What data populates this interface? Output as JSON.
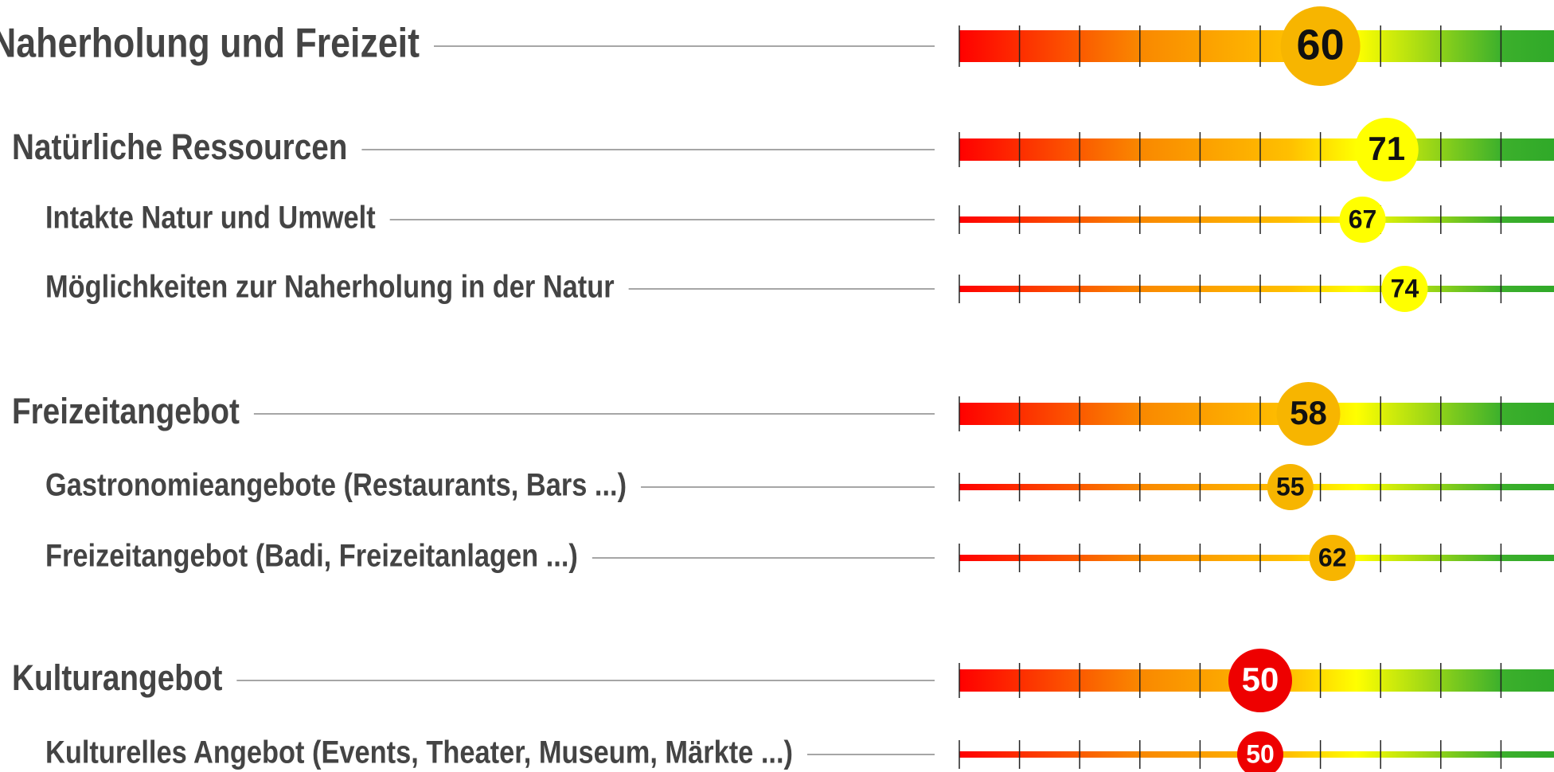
{
  "chart_data": {
    "type": "gauge-list",
    "xlim": [
      0,
      100
    ],
    "xticks": [
      0,
      10,
      20,
      30,
      40,
      50,
      60,
      70,
      80,
      90
    ],
    "rows": [
      {
        "level": 1,
        "label": "Naherholung und Freizeit",
        "value": 60,
        "color": "#f7b500"
      },
      {
        "level": 2,
        "label": "Natürliche Ressourcen",
        "value": 71,
        "color": "#ffff00"
      },
      {
        "level": 3,
        "label": "Intakte Natur und Umwelt",
        "value": 67,
        "color": "#ffff00"
      },
      {
        "level": 3,
        "label": "Möglichkeiten zur Naherholung in der Natur",
        "value": 74,
        "color": "#ffff00"
      },
      {
        "level": 2,
        "label": "Freizeitangebot",
        "value": 58,
        "color": "#f7b500"
      },
      {
        "level": 3,
        "label": "Gastronomieangebote (Restaurants, Bars ...)",
        "value": 55,
        "color": "#f7b500"
      },
      {
        "level": 3,
        "label": "Freizeitangebot (Badi, Freizeitanlagen ...)",
        "value": 62,
        "color": "#f7b500"
      },
      {
        "level": 2,
        "label": "Kulturangebot",
        "value": 50,
        "color": "#ee0000"
      },
      {
        "level": 3,
        "label": "Kulturelles Angebot (Events, Theater, Museum, Märkte ...)",
        "value": 50,
        "color": "#ee0000"
      }
    ]
  }
}
